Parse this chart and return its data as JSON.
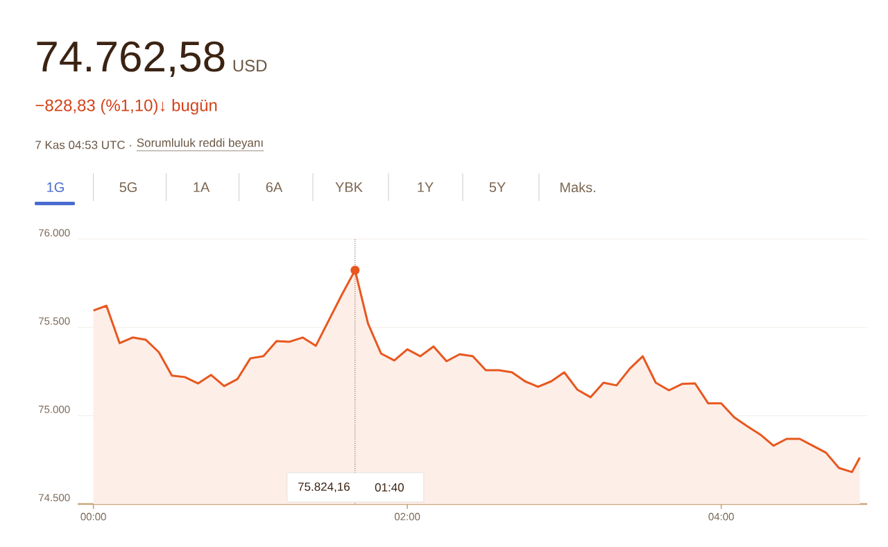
{
  "chart_data": {
    "type": "area",
    "title": "74.762,58",
    "subtitle": "−828,83 (%1,10)↓ bugün",
    "x": [
      0,
      0.083,
      0.167,
      0.25,
      0.333,
      0.417,
      0.5,
      0.583,
      0.667,
      0.75,
      0.833,
      0.917,
      1,
      1.083,
      1.167,
      1.25,
      1.333,
      1.417,
      1.5,
      1.583,
      1.667,
      1.75,
      1.833,
      1.917,
      2,
      2.083,
      2.167,
      2.25,
      2.333,
      2.417,
      2.5,
      2.583,
      2.667,
      2.75,
      2.833,
      2.917,
      3,
      3.083,
      3.167,
      3.25,
      3.333,
      3.417,
      3.5,
      3.583,
      3.667,
      3.75,
      3.833,
      3.917,
      4,
      4.083,
      4.167,
      4.25,
      4.333,
      4.417,
      4.5,
      4.583,
      4.667,
      4.75,
      4.833,
      4.883
    ],
    "values": [
      75596,
      75623,
      75411,
      75443,
      75431,
      75360,
      75227,
      75219,
      75183,
      75231,
      75168,
      75207,
      75325,
      75337,
      75423,
      75419,
      75443,
      75396,
      75541,
      75686,
      75824,
      75521,
      75352,
      75313,
      75376,
      75337,
      75392,
      75309,
      75348,
      75337,
      75258,
      75258,
      75246,
      75195,
      75164,
      75195,
      75246,
      75148,
      75105,
      75187,
      75172,
      75266,
      75337,
      75187,
      75144,
      75180,
      75183,
      75070,
      75070,
      74991,
      74940,
      74893,
      74830,
      74869,
      74869,
      74830,
      74791,
      74704,
      74681,
      74763
    ],
    "color": "#e8571e",
    "xlim": [
      -0.1,
      4.93
    ],
    "ylim": [
      74500,
      76000
    ],
    "xticks": [
      {
        "value": 0,
        "label": "00:00"
      },
      {
        "value": 2,
        "label": "02:00"
      },
      {
        "value": 4,
        "label": "04:00"
      }
    ],
    "yticks": [
      {
        "value": 74500,
        "label": "74.500"
      },
      {
        "value": 75000,
        "label": "75.000"
      },
      {
        "value": 75500,
        "label": "75.500"
      },
      {
        "value": 76000,
        "label": "76.000"
      }
    ],
    "grid": "y",
    "ref_lines": [
      {
        "axis": "x",
        "value": 1.667,
        "line_style": "dotted",
        "color": "#a08a78"
      }
    ],
    "annotations": [
      "USD",
      "7 Kas 04:53 UTC ·",
      "Sorumluluk reddi beyanı",
      "1G",
      "5G",
      "1A",
      "6A",
      "YBK",
      "1Y",
      "5Y",
      "Maks.",
      "75.824,16",
      "01:40"
    ]
  }
}
